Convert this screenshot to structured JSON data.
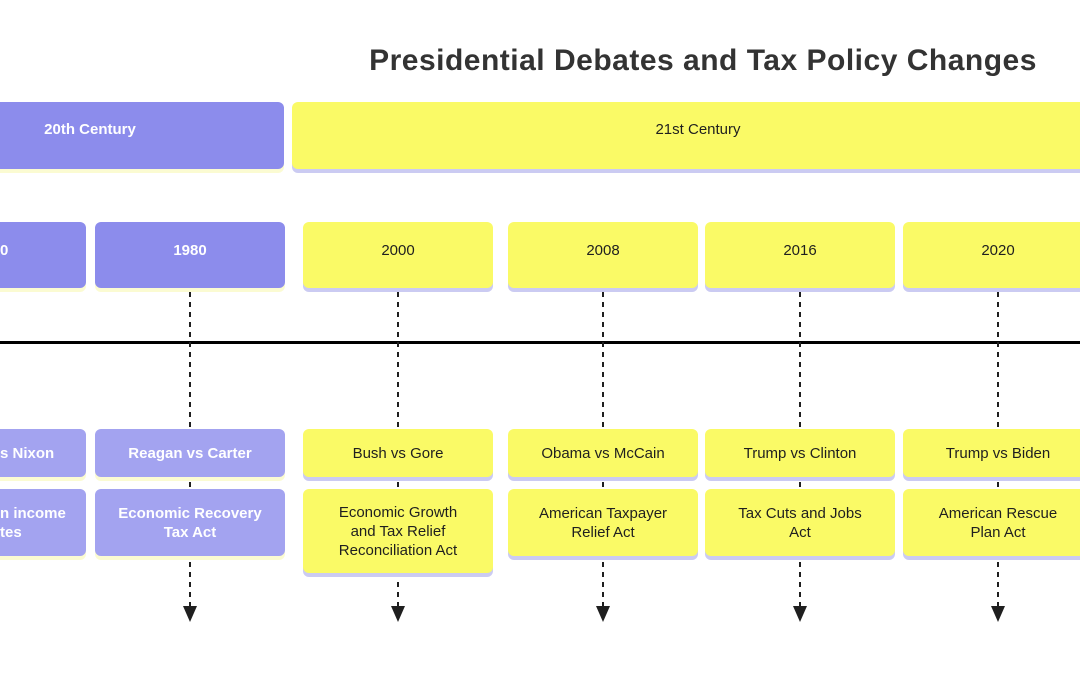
{
  "title": "Presidential Debates and Tax Policy Changes",
  "sections": [
    {
      "label": "20th Century",
      "theme": "purple"
    },
    {
      "label": "21st Century",
      "theme": "yellow"
    }
  ],
  "columns": [
    {
      "year": "0",
      "debate": "s Nixon",
      "tax": "n income\ntes"
    },
    {
      "year": "1980",
      "debate": "Reagan vs Carter",
      "tax": "Economic Recovery\nTax Act"
    },
    {
      "year": "2000",
      "debate": "Bush vs Gore",
      "tax": "Economic Growth\nand Tax Relief\nReconciliation Act"
    },
    {
      "year": "2008",
      "debate": "Obama vs McCain",
      "tax": "American Taxpayer\nRelief Act"
    },
    {
      "year": "2016",
      "debate": "Trump vs Clinton",
      "tax": "Tax Cuts and Jobs\nAct"
    },
    {
      "year": "2020",
      "debate": "Trump vs Biden",
      "tax": "American Rescue\nPlan Act"
    }
  ],
  "colors": {
    "section_purple": "#8C8CEC",
    "event_purple": "#A3A3F0",
    "section_yellow": "#FAFA66",
    "shadow_pale_yellow": "#FBFBD2",
    "shadow_lavender": "#CBCBF2",
    "axis_line": "#000000",
    "arrow": "#1F1F1F",
    "text_dark": "#1F1F1F",
    "text_light": "#FFFFFF",
    "title_color": "#333333"
  }
}
